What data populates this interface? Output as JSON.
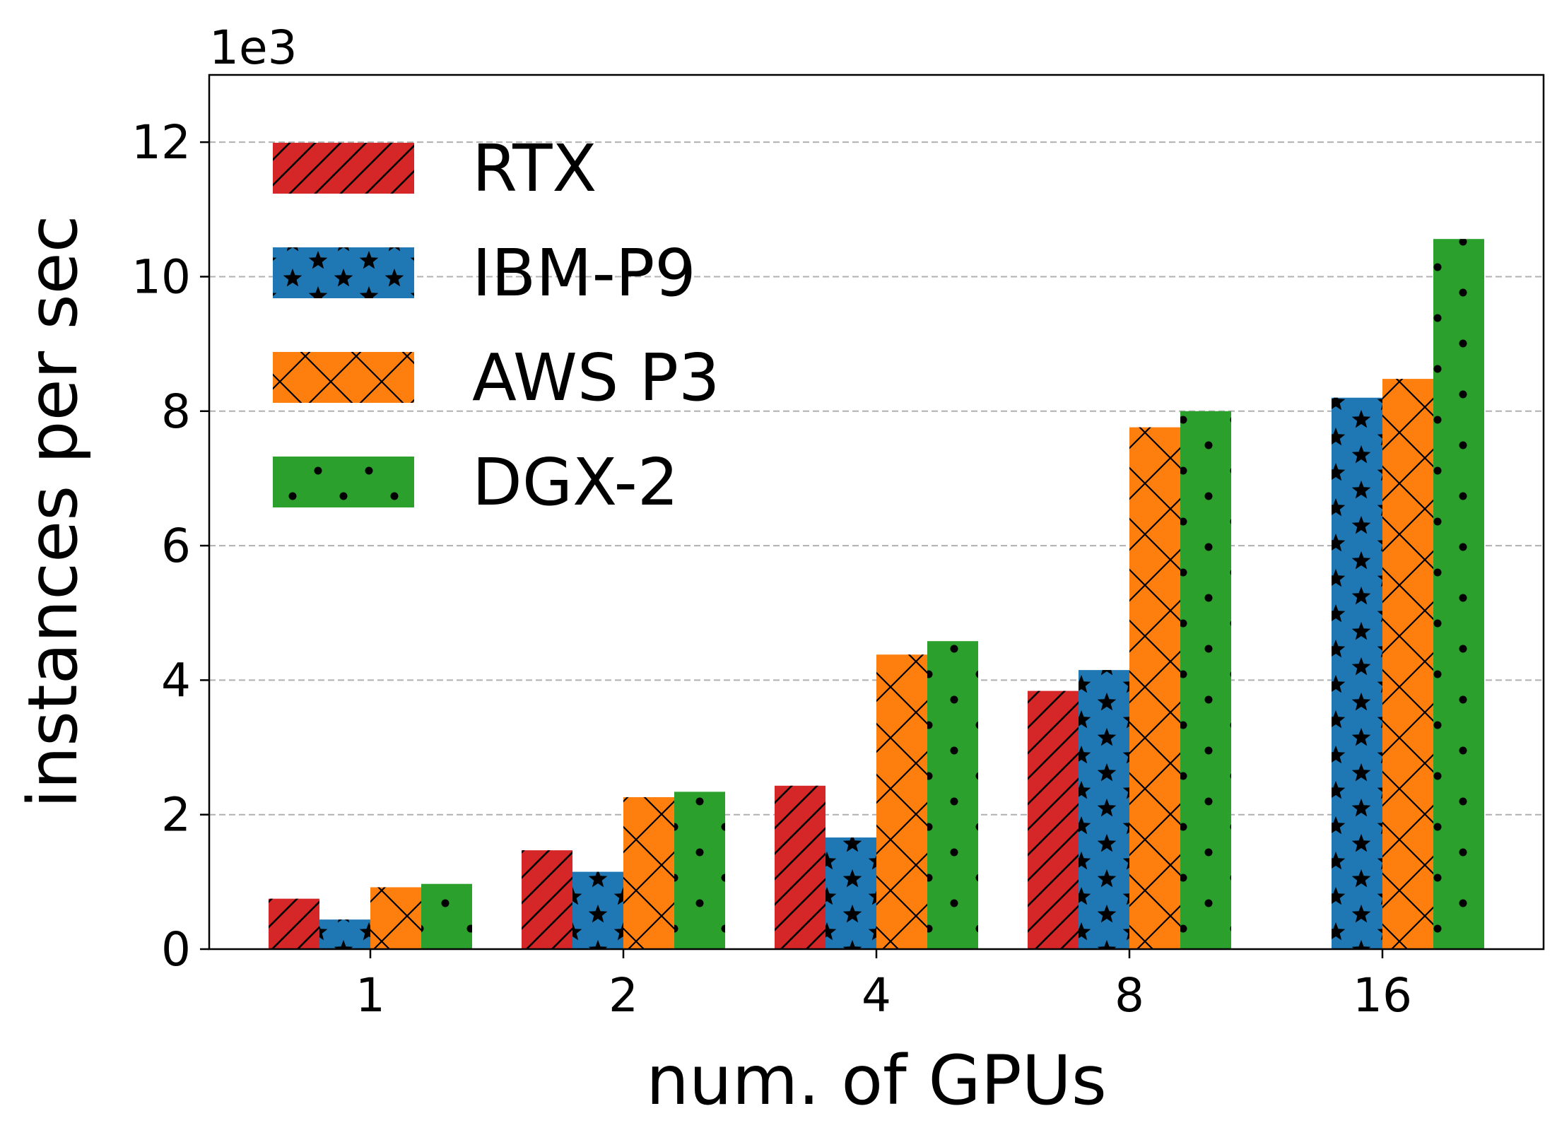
{
  "chart_data": {
    "type": "bar",
    "title": "",
    "xlabel": "num. of GPUs",
    "ylabel": "instances per sec",
    "y_offset_label": "1e3",
    "y_unit_scale": 1000,
    "ylim": [
      0,
      13000
    ],
    "yticks": [
      0,
      2000,
      4000,
      6000,
      8000,
      10000,
      12000
    ],
    "ytick_labels": [
      "0",
      "2",
      "4",
      "6",
      "8",
      "10",
      "12"
    ],
    "grid": "horizontal dashed",
    "legend_position": "upper-left",
    "categories": [
      "1",
      "2",
      "4",
      "8",
      "16"
    ],
    "series": [
      {
        "name": "RTX",
        "color": "#d62728",
        "hatch": "diagonal",
        "values": [
          750,
          1470,
          2430,
          3840,
          null
        ]
      },
      {
        "name": "IBM-P9",
        "color": "#1f77b4",
        "hatch": "stars",
        "values": [
          440,
          1150,
          1660,
          4150,
          8200
        ]
      },
      {
        "name": "AWS P3",
        "color": "#ff7f0e",
        "hatch": "cross",
        "values": [
          920,
          2260,
          4380,
          7760,
          8480
        ]
      },
      {
        "name": "DGX-2",
        "color": "#2ca02c",
        "hatch": "dots",
        "values": [
          970,
          2340,
          4580,
          8000,
          10560
        ]
      }
    ]
  }
}
